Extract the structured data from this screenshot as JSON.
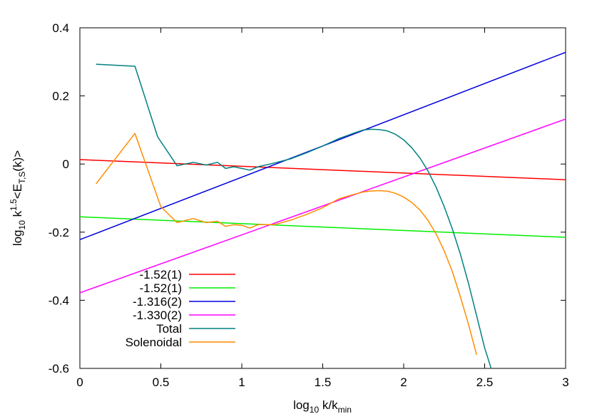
{
  "chart_data": {
    "type": "line",
    "xlabel": {
      "base": "log",
      "sub": "10",
      "mid": " k/k",
      "sub2": "min"
    },
    "ylabel": {
      "base": "log",
      "sub": "10",
      "mid": " k",
      "sup": "1.5",
      "mid2": "<E",
      "sub2": "T,S",
      "end": "(k)>"
    },
    "xlim": [
      0,
      3
    ],
    "ylim": [
      -0.6,
      0.4
    ],
    "xticks": [
      "0",
      "0.5",
      "1",
      "1.5",
      "2",
      "2.5",
      "3"
    ],
    "yticks": [
      "0.4",
      "0.2",
      "0",
      "-0.2",
      "-0.4",
      "-0.6"
    ],
    "legend_position": "bottom-left",
    "series": [
      {
        "name": "-1.52(1)",
        "color": "#ff0000",
        "kind": "fit",
        "x": [
          0,
          3
        ],
        "y": [
          0.013,
          -0.046
        ]
      },
      {
        "name": "-1.52(1)",
        "color": "#00ee00",
        "kind": "fit",
        "x": [
          0,
          3
        ],
        "y": [
          -0.155,
          -0.215
        ]
      },
      {
        "name": "-1.316(2)",
        "color": "#0000dd",
        "kind": "fit",
        "x": [
          0,
          3
        ],
        "y": [
          -0.222,
          0.328
        ]
      },
      {
        "name": "-1.330(2)",
        "color": "#ff00ff",
        "kind": "fit",
        "x": [
          0,
          3
        ],
        "y": [
          -0.378,
          0.132
        ]
      },
      {
        "name": "Total",
        "color": "#008080",
        "kind": "data",
        "x": [
          0.1,
          0.34,
          0.48,
          0.6,
          0.7,
          0.78,
          0.85,
          0.9,
          0.95,
          1.0,
          1.05,
          1.1,
          1.2,
          1.3,
          1.4,
          1.5,
          1.6,
          1.7,
          1.75,
          1.8,
          1.85,
          1.9,
          1.95,
          2.0,
          2.05,
          2.1,
          2.15,
          2.2,
          2.25,
          2.3,
          2.35,
          2.4,
          2.45,
          2.5,
          2.54
        ],
        "y": [
          0.293,
          0.287,
          0.08,
          -0.005,
          0.005,
          -0.003,
          0.005,
          -0.013,
          -0.008,
          -0.013,
          -0.018,
          -0.008,
          0.003,
          0.015,
          0.033,
          0.053,
          0.075,
          0.092,
          0.1,
          0.102,
          0.101,
          0.097,
          0.087,
          0.071,
          0.048,
          0.018,
          -0.02,
          -0.068,
          -0.125,
          -0.19,
          -0.265,
          -0.35,
          -0.445,
          -0.54,
          -0.6
        ]
      },
      {
        "name": "Solenoidal",
        "color": "#ff8c00",
        "kind": "data",
        "x": [
          0.1,
          0.34,
          0.5,
          0.6,
          0.7,
          0.78,
          0.85,
          0.9,
          0.95,
          1.0,
          1.05,
          1.1,
          1.2,
          1.3,
          1.4,
          1.5,
          1.6,
          1.7,
          1.75,
          1.8,
          1.85,
          1.9,
          1.95,
          2.0,
          2.05,
          2.1,
          2.15,
          2.2,
          2.25,
          2.3,
          2.35,
          2.4,
          2.45
        ],
        "y": [
          -0.058,
          0.09,
          -0.125,
          -0.172,
          -0.16,
          -0.172,
          -0.168,
          -0.183,
          -0.178,
          -0.18,
          -0.188,
          -0.178,
          -0.178,
          -0.165,
          -0.148,
          -0.128,
          -0.102,
          -0.088,
          -0.082,
          -0.079,
          -0.078,
          -0.08,
          -0.086,
          -0.097,
          -0.113,
          -0.135,
          -0.165,
          -0.205,
          -0.255,
          -0.315,
          -0.39,
          -0.47,
          -0.56
        ]
      }
    ]
  }
}
